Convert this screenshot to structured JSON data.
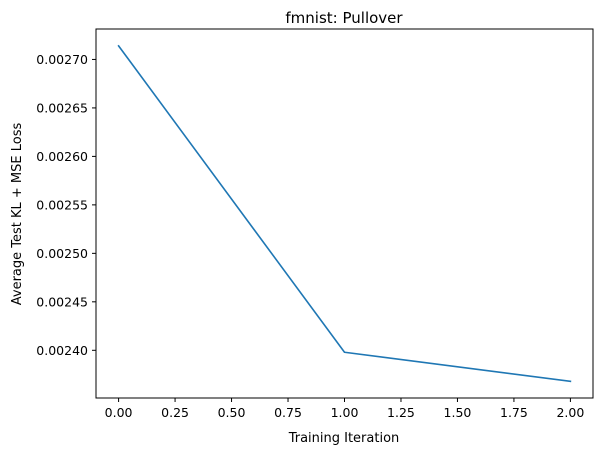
{
  "chart_data": {
    "type": "line",
    "title": "fmnist: Pullover",
    "xlabel": "Training Iteration",
    "ylabel": "Average Test KL + MSE Loss",
    "x": [
      0,
      1,
      2
    ],
    "series": [
      {
        "values": [
          0.002714,
          0.002398,
          0.002368
        ],
        "color": "#1f77b4"
      }
    ],
    "xlim": [
      -0.1,
      2.1
    ],
    "ylim": [
      0.0023508,
      0.0027314
    ],
    "xticks": [
      0.0,
      0.25,
      0.5,
      0.75,
      1.0,
      1.25,
      1.5,
      1.75,
      2.0
    ],
    "xtick_labels": [
      "0.00",
      "0.25",
      "0.50",
      "0.75",
      "1.00",
      "1.25",
      "1.50",
      "1.75",
      "2.00"
    ],
    "yticks": [
      0.0024,
      0.00245,
      0.0025,
      0.00255,
      0.0026,
      0.00265,
      0.0027
    ],
    "ytick_labels": [
      "0.00240",
      "0.00245",
      "0.00250",
      "0.00255",
      "0.00260",
      "0.00265",
      "0.00270"
    ],
    "grid": false,
    "legend": "none"
  }
}
